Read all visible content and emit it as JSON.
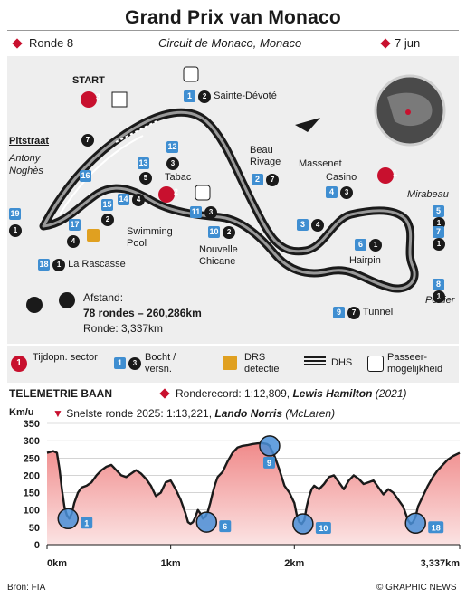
{
  "header": {
    "title": "Grand Prix van Monaco",
    "round": "Ronde 8",
    "circuit": "Circuit de Monaco, Monaco",
    "date": "7 jun"
  },
  "map": {
    "start_label": "START",
    "pitlane_label": "Pitstraat",
    "corners": [
      {
        "num": "1",
        "gear": "2",
        "name": "Sainte-Dévoté"
      },
      {
        "num": "2",
        "gear": "7",
        "name": "Beau Rivage"
      },
      {
        "num": "3",
        "gear": "4",
        "name": ""
      },
      {
        "num": "4",
        "gear": "3",
        "name": "Casino"
      },
      {
        "num": "5",
        "gear": "1",
        "name": "Mirabeau"
      },
      {
        "num": "6",
        "gear": "1",
        "name": "Hairpin"
      },
      {
        "num": "7",
        "gear": "1",
        "name": ""
      },
      {
        "num": "8",
        "gear": "1",
        "name": "Portier"
      },
      {
        "num": "9",
        "gear": "7",
        "name": "Tunnel"
      },
      {
        "num": "10",
        "gear": "2",
        "name": "Nouvelle Chicane"
      },
      {
        "num": "11",
        "gear": "3",
        "name": ""
      },
      {
        "num": "12",
        "gear": "3",
        "name": "Tabac"
      },
      {
        "num": "13",
        "gear": "5",
        "name": ""
      },
      {
        "num": "14",
        "gear": "4",
        "name": "Swimming Pool"
      },
      {
        "num": "15",
        "gear": "2",
        "name": ""
      },
      {
        "num": "16",
        "gear": "7",
        "name": ""
      },
      {
        "num": "17",
        "gear": "4",
        "name": ""
      },
      {
        "num": "18",
        "gear": "1",
        "name": "La Rascasse"
      },
      {
        "num": "19",
        "gear": "1",
        "name": "Antony Noghès"
      }
    ],
    "massenet_label": "Massenet",
    "sectors": [
      "1",
      "2",
      "3"
    ],
    "distance_label": "Afstand:",
    "laps_distance": "78 rondes – 260,286km",
    "lap_length": "Ronde: 3,337km"
  },
  "legend": {
    "sector": "Tijdopn. sector",
    "corner": "Bocht / versn.",
    "drs_detect": "DRS detectie",
    "drs": "DHS",
    "overtake": "Passeer-mogelijkheid",
    "sector_num": "1",
    "corner_num": "1",
    "gear_num": "3"
  },
  "telemetry": {
    "heading": "TELEMETRIE BAAN",
    "record_label": "Ronderecord: 1:12,809,",
    "record_driver": "Lewis Hamilton",
    "record_year": "(2021)",
    "fastest_label": "Snelste ronde 2025: 1:13,221,",
    "fastest_driver": "Lando Norris",
    "fastest_team": "(McLaren)"
  },
  "chart_data": {
    "type": "area",
    "ylabel": "Km/u",
    "ylim": [
      0,
      350
    ],
    "xlim": [
      0,
      3.337
    ],
    "yticks": [
      0,
      50,
      100,
      150,
      200,
      250,
      300,
      350
    ],
    "xticks": [
      {
        "value": 0,
        "label": "0km"
      },
      {
        "value": 1,
        "label": "1km"
      },
      {
        "value": 2,
        "label": "2km"
      },
      {
        "value": 3.337,
        "label": "3,337km"
      }
    ],
    "series": [
      {
        "x": [
          0,
          0.05,
          0.08,
          0.1,
          0.12,
          0.14,
          0.16,
          0.18,
          0.2,
          0.22,
          0.25,
          0.28,
          0.32,
          0.36,
          0.4,
          0.44,
          0.48,
          0.52,
          0.56,
          0.6,
          0.64,
          0.68,
          0.72,
          0.76,
          0.8,
          0.84,
          0.88,
          0.92,
          0.96,
          1.0,
          1.04,
          1.08,
          1.1,
          1.12,
          1.14,
          1.16,
          1.18,
          1.2,
          1.22,
          1.24,
          1.26,
          1.28,
          1.3,
          1.32,
          1.34,
          1.36,
          1.38,
          1.42,
          1.46,
          1.5,
          1.54,
          1.58,
          1.62,
          1.66,
          1.7,
          1.74,
          1.78,
          1.8,
          1.84,
          1.88,
          1.92,
          1.96,
          2.0,
          2.02,
          2.04,
          2.06,
          2.08,
          2.1,
          2.12,
          2.14,
          2.16,
          2.18,
          2.2,
          2.24,
          2.28,
          2.32,
          2.36,
          2.4,
          2.44,
          2.48,
          2.52,
          2.56,
          2.6,
          2.64,
          2.68,
          2.72,
          2.76,
          2.8,
          2.84,
          2.88,
          2.9,
          2.92,
          2.94,
          2.96,
          2.98,
          3.0,
          3.04,
          3.08,
          3.12,
          3.16,
          3.2,
          3.24,
          3.28,
          3.337
        ],
        "y": [
          265,
          270,
          265,
          220,
          160,
          110,
          85,
          75,
          90,
          120,
          150,
          165,
          170,
          180,
          200,
          215,
          225,
          230,
          215,
          200,
          195,
          205,
          215,
          205,
          190,
          170,
          140,
          150,
          180,
          185,
          160,
          130,
          110,
          90,
          65,
          60,
          65,
          80,
          100,
          90,
          75,
          80,
          95,
          120,
          150,
          175,
          195,
          210,
          240,
          265,
          280,
          285,
          287,
          290,
          292,
          293,
          290,
          285,
          255,
          215,
          170,
          150,
          120,
          85,
          65,
          60,
          70,
          110,
          140,
          160,
          170,
          165,
          160,
          175,
          195,
          200,
          180,
          160,
          185,
          200,
          190,
          175,
          180,
          185,
          165,
          145,
          160,
          150,
          130,
          110,
          90,
          70,
          60,
          65,
          80,
          110,
          140,
          170,
          195,
          215,
          230,
          245,
          255,
          265
        ]
      }
    ],
    "markers": [
      {
        "corner": "1",
        "x": 0.17,
        "y": 75
      },
      {
        "corner": "6",
        "x": 1.29,
        "y": 65
      },
      {
        "corner": "9",
        "x": 1.8,
        "y": 285
      },
      {
        "corner": "10",
        "x": 2.07,
        "y": 60
      },
      {
        "corner": "18",
        "x": 2.98,
        "y": 62
      }
    ]
  }
}
